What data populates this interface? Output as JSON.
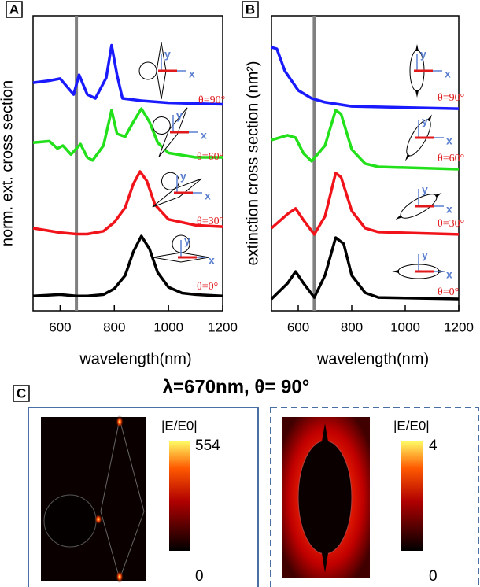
{
  "chart_data": [
    {
      "type": "line",
      "panel": "A",
      "x_label": "wavelength(nm)",
      "y_label": "norm. ext. cross section",
      "xlim": [
        500,
        1200
      ],
      "xticks": [
        600,
        800,
        1000,
        1200
      ],
      "ylim": [
        0,
        10
      ],
      "vline": {
        "x": 660,
        "color": "#808080"
      },
      "inset_axes": [
        "x",
        "y"
      ],
      "label_color": "#e0191b",
      "series": [
        {
          "name": "θ=90°",
          "color": "#1a1aff",
          "x": [
            500,
            560,
            600,
            650,
            670,
            700,
            730,
            770,
            790,
            810,
            830,
            900,
            1000,
            1200
          ],
          "values": [
            7.73,
            7.8,
            7.87,
            7.33,
            8.0,
            7.33,
            7.2,
            7.9,
            9.0,
            8.0,
            7.2,
            7.12,
            7.05,
            7.0
          ]
        },
        {
          "name": "θ=60°",
          "color": "#22e01a",
          "x": [
            500,
            560,
            590,
            610,
            640,
            660,
            675,
            700,
            720,
            760,
            790,
            810,
            840,
            870,
            900,
            930,
            960,
            1000,
            1100,
            1200
          ],
          "values": [
            5.7,
            5.75,
            5.5,
            5.6,
            5.3,
            5.5,
            5.65,
            5.2,
            5.1,
            5.6,
            6.8,
            6.0,
            5.9,
            6.4,
            6.85,
            6.4,
            5.7,
            5.35,
            5.2,
            5.2
          ]
        },
        {
          "name": "θ=30°",
          "color": "#f0141a",
          "x": [
            500,
            600,
            660,
            700,
            760,
            800,
            840,
            870,
            895,
            920,
            950,
            1000,
            1100,
            1200
          ],
          "values": [
            2.8,
            2.65,
            2.6,
            2.6,
            2.7,
            3.0,
            3.5,
            4.3,
            4.72,
            4.4,
            3.6,
            3.1,
            2.9,
            2.85
          ]
        },
        {
          "name": "θ=0°",
          "color": "#000000",
          "x": [
            500,
            600,
            660,
            700,
            760,
            800,
            840,
            870,
            900,
            930,
            960,
            1000,
            1050,
            1100,
            1200
          ],
          "values": [
            0.5,
            0.55,
            0.5,
            0.5,
            0.55,
            0.75,
            1.2,
            2.0,
            2.53,
            2.1,
            1.3,
            0.8,
            0.6,
            0.55,
            0.5
          ]
        }
      ]
    },
    {
      "type": "line",
      "panel": "B",
      "x_label": "wavelength(nm)",
      "y_label": "extinction cross section (nm²)",
      "xlim": [
        500,
        1200
      ],
      "xticks": [
        600,
        800,
        1000,
        1200
      ],
      "ylim": [
        0,
        10
      ],
      "vline": {
        "x": 660,
        "color": "#808080"
      },
      "inset_axes": [
        "x",
        "y"
      ],
      "label_color": "#e0191b",
      "series": [
        {
          "name": "θ=90°",
          "color": "#1a1aff",
          "x": [
            500,
            520,
            550,
            600,
            650,
            700,
            800,
            1200
          ],
          "values": [
            8.93,
            8.88,
            8.13,
            7.47,
            7.2,
            7.07,
            6.93,
            6.85
          ]
        },
        {
          "name": "θ=60°",
          "color": "#22e01a",
          "x": [
            500,
            560,
            590,
            620,
            650,
            700,
            740,
            760,
            800,
            850,
            900,
            1200
          ],
          "values": [
            5.79,
            5.95,
            5.87,
            5.33,
            5.07,
            5.6,
            6.8,
            6.67,
            5.47,
            4.99,
            4.88,
            4.8
          ]
        },
        {
          "name": "θ=30°",
          "color": "#f0141a",
          "x": [
            500,
            560,
            590,
            620,
            660,
            700,
            740,
            760,
            800,
            850,
            900,
            1200
          ],
          "values": [
            2.8,
            3.28,
            3.47,
            3.07,
            2.59,
            3.2,
            4.67,
            4.53,
            3.39,
            2.8,
            2.67,
            2.59
          ]
        },
        {
          "name": "θ=0°",
          "color": "#000000",
          "x": [
            500,
            560,
            590,
            620,
            660,
            700,
            740,
            770,
            800,
            850,
            900,
            1200
          ],
          "values": [
            0.4,
            0.93,
            1.33,
            0.93,
            0.45,
            1.2,
            2.48,
            2.27,
            1.2,
            0.61,
            0.45,
            0.4
          ]
        }
      ]
    }
  ],
  "panel_c": {
    "label": "C",
    "title": "λ=670nm, θ= 90°",
    "maps": [
      {
        "colorbar_label": "|E/E0|",
        "max": "554",
        "min": "0"
      },
      {
        "colorbar_label": "|E/E0|",
        "max": "4",
        "min": "0"
      }
    ]
  }
}
